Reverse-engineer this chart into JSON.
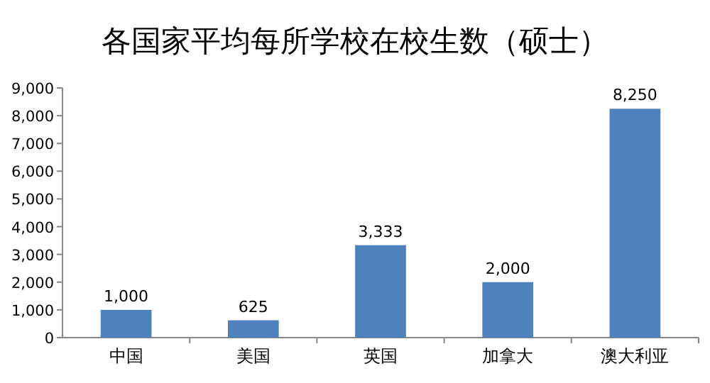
{
  "chart_data": {
    "type": "bar",
    "title": "各国家平均每所学校在校生数（硕士）",
    "categories": [
      "中国",
      "美国",
      "英国",
      "加拿大",
      "澳大利亚"
    ],
    "values": [
      1000,
      625,
      3333,
      2000,
      8250
    ],
    "value_labels": [
      "1,000",
      "625",
      "3,333",
      "2,000",
      "8,250"
    ],
    "color": "#4f81bd",
    "ylim": [
      0,
      9000
    ],
    "yticks": [
      0,
      {
        "value": 1000,
        "label": "1,000"
      },
      {
        "value": 2000,
        "label": "2,000"
      },
      {
        "value": 3000,
        "label": "3,000"
      },
      {
        "value": 4000,
        "label": "4,000"
      },
      {
        "value": 5000,
        "label": "5,000"
      },
      {
        "value": 6000,
        "label": "6,000"
      },
      {
        "value": 7000,
        "label": "7,000"
      },
      {
        "value": 8000,
        "label": "8,000"
      },
      {
        "value": 9000,
        "label": "9,000"
      }
    ]
  }
}
